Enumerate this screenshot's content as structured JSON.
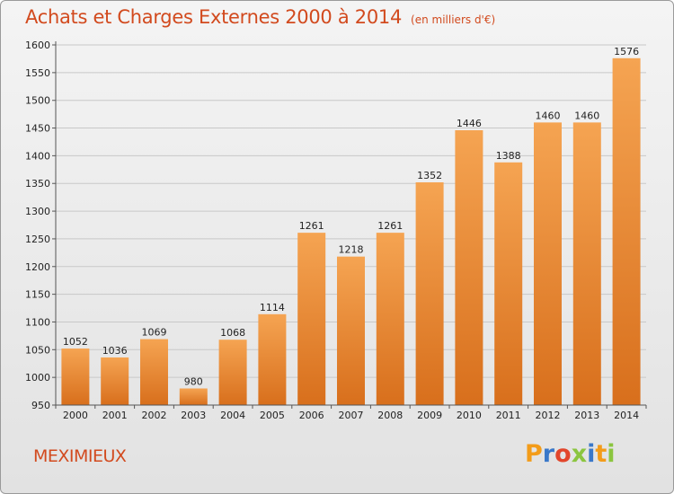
{
  "page": {
    "title": "Achats et Charges Externes 2000 à 2014",
    "subtitle": "(en milliers d'€)",
    "city": "MEXIMIEUX",
    "logo": {
      "letters": [
        "P",
        "r",
        "o",
        "x",
        "i",
        "t",
        "i"
      ],
      "colors": [
        "#f39c1a",
        "#3a78c9",
        "#e2462b",
        "#8bc53f",
        "#3a78c9",
        "#f39c1a",
        "#8bc53f"
      ]
    },
    "accent_color": "#d24a1e",
    "bar_color_top": "#f5a452",
    "bar_color_bottom": "#d86f1c"
  },
  "chart_data": {
    "type": "bar",
    "title": "Achats et Charges Externes 2000 à 2014",
    "subtitle": "(en milliers d'€)",
    "categories": [
      "2000",
      "2001",
      "2002",
      "2003",
      "2004",
      "2005",
      "2006",
      "2007",
      "2008",
      "2009",
      "2010",
      "2011",
      "2012",
      "2013",
      "2014"
    ],
    "values": [
      1052,
      1036,
      1069,
      980,
      1068,
      1114,
      1261,
      1218,
      1261,
      1352,
      1446,
      1388,
      1460,
      1460,
      1576
    ],
    "data_labels": [
      "1052",
      "1036",
      "1069",
      "980",
      "1068",
      "1114",
      "1261",
      "1218",
      "1261",
      "1352",
      "1446",
      "1388",
      "1460",
      "1460",
      "1576"
    ],
    "yticks": [
      "950",
      "1000",
      "1050",
      "1100",
      "1150",
      "1200",
      "1250",
      "1300",
      "1350",
      "1400",
      "1450",
      "1500",
      "1550",
      "1600"
    ],
    "ylim": [
      950,
      1600
    ],
    "grid": true,
    "legend": "none"
  }
}
